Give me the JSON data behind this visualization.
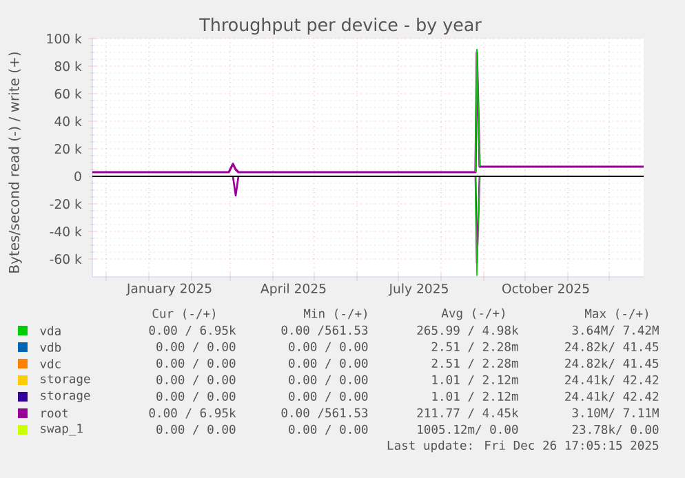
{
  "chart_data": {
    "type": "line",
    "title": "Throughput per device - by year",
    "ylabel": "Bytes/second read (-) / write (+)",
    "xlim": [
      "2024-11-21",
      "2025-12-26"
    ],
    "ylim": [
      -73000,
      100000
    ],
    "xticks": [
      {
        "value": "2024-12-01",
        "label": null
      },
      {
        "value": "2025-01-01",
        "label": null
      },
      {
        "value": "2025-02-01",
        "label": null
      },
      {
        "value": "2025-03-01",
        "label": null
      },
      {
        "value": "2025-04-01",
        "label": null
      },
      {
        "value": "2025-05-01",
        "label": null
      },
      {
        "value": "2025-06-01",
        "label": null
      },
      {
        "value": "2025-07-01",
        "label": null
      },
      {
        "value": "2025-08-01",
        "label": null
      },
      {
        "value": "2025-09-01",
        "label": null
      },
      {
        "value": "2025-10-01",
        "label": null
      },
      {
        "value": "2025-11-01",
        "label": null
      },
      {
        "value": "2025-12-01",
        "label": null
      },
      {
        "value": "2025-01-16",
        "label": "January 2025"
      },
      {
        "value": "2025-04-16",
        "label": "April 2025"
      },
      {
        "value": "2025-07-16",
        "label": "July 2025"
      },
      {
        "value": "2025-10-16",
        "label": "October 2025"
      }
    ],
    "yticks": [
      {
        "value": -60000,
        "label": "-60 k"
      },
      {
        "value": -40000,
        "label": "-40 k"
      },
      {
        "value": -20000,
        "label": "-20 k"
      },
      0,
      {
        "value": 20000,
        "label": "20 k"
      },
      {
        "value": 40000,
        "label": "40 k"
      },
      {
        "value": 60000,
        "label": "60 k"
      },
      {
        "value": 80000,
        "label": "80 k"
      },
      {
        "value": 100000,
        "label": "100 k"
      }
    ],
    "grid": true,
    "legend": "bottom",
    "ref_lines": [
      {
        "axis": "y",
        "value": 0,
        "color": "#000000"
      }
    ],
    "series": [
      {
        "color": "#00cc00",
        "x": [
          "2025-08-26",
          "2025-08-27",
          "2025-08-29"
        ],
        "values": [
          0,
          -72000,
          0
        ]
      },
      {
        "name": "vda",
        "color": "#00cc00",
        "x": [
          "2025-08-26",
          "2025-08-27",
          "2025-08-29"
        ],
        "values": [
          3000,
          92000,
          7000
        ]
      },
      {
        "name": "vdb",
        "color": "#0066b3"
      },
      {
        "name": "vdc",
        "color": "#ff8000"
      },
      {
        "name": "storage",
        "color": "#ffcc00"
      },
      {
        "name": "storage",
        "color": "#330099"
      },
      {
        "color": "#990099",
        "x": [
          "2025-03-03",
          "2025-03-05",
          "2025-03-07",
          "2025-06-01",
          "2025-08-26",
          "2025-08-27",
          "2025-08-29"
        ],
        "values": [
          0,
          -14000,
          0,
          null,
          0,
          -63000,
          0
        ]
      },
      {
        "name": "root",
        "color": "#990099",
        "x": [
          "2024-11-21",
          "2025-02-28",
          "2025-03-03",
          "2025-03-05",
          "2025-03-07",
          "2025-08-26",
          "2025-08-27",
          "2025-08-29",
          "2025-12-26"
        ],
        "values": [
          3000,
          3000,
          9000,
          5000,
          3000,
          3000,
          90000,
          7000,
          7000
        ]
      },
      {
        "name": "swap_1",
        "color": "#ccff00"
      }
    ],
    "annotations": [
      "Cur (-/+)",
      "Min (-/+)",
      "Avg (-/+)",
      "Max (-/+)",
      "0.00 / 6.95k",
      "0.00 /561.53",
      "265.99 / 4.98k",
      "3.64M/ 7.42M",
      "0.00 / 0.00",
      "0.00 / 0.00",
      "2.51 / 2.28m",
      "24.82k/ 41.45",
      "0.00 / 0.00",
      "0.00 / 0.00",
      "2.51 / 2.28m",
      "24.82k/ 41.45",
      "0.00 / 0.00",
      "0.00 / 0.00",
      "1.01 / 2.12m",
      "24.41k/ 42.42",
      "0.00 / 0.00",
      "0.00 / 0.00",
      "1.01 / 2.12m",
      "24.41k/ 42.42",
      "0.00 / 6.95k",
      "0.00 /561.53",
      "211.77 / 4.45k",
      "3.10M/ 7.11M",
      "0.00 / 0.00",
      "0.00 / 0.00",
      "1005.12m/ 0.00",
      "23.78k/ 0.00",
      "Last update: Fri Dec 26 17:05:15 2025"
    ]
  }
}
